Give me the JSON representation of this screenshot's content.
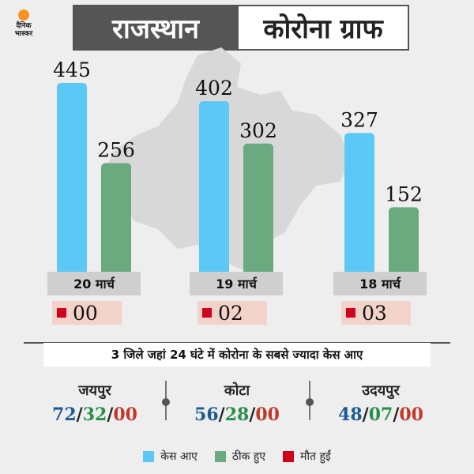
{
  "brand": {
    "line1": "दैनिक",
    "line2": "भास्कर"
  },
  "header": {
    "title_left": "राजस्थान",
    "title_right": "कोरोना ग्राफ"
  },
  "colors": {
    "cases": "#5bc8f5",
    "recovered": "#6aaa7e",
    "deaths": "#d0021b"
  },
  "chart_data": {
    "type": "bar",
    "categories": [
      "20 मार्च",
      "19 मार्च",
      "18 मार्च"
    ],
    "series": [
      {
        "name": "केस आए",
        "values": [
          445,
          402,
          327
        ]
      },
      {
        "name": "ठीक हुए",
        "values": [
          256,
          302,
          152
        ]
      }
    ],
    "deaths": [
      "00",
      "02",
      "03"
    ],
    "ylim": [
      0,
      445
    ]
  },
  "districts": {
    "heading": "3 जिले जहां 24 घंटे में कोरोना के सबसे ज्यादा केस आए",
    "items": [
      {
        "name": "जयपुर",
        "cases": "72",
        "recovered": "32",
        "deaths": "00"
      },
      {
        "name": "कोटा",
        "cases": "56",
        "recovered": "28",
        "deaths": "00"
      },
      {
        "name": "उदयपुर",
        "cases": "48",
        "recovered": "07",
        "deaths": "00"
      }
    ],
    "separator": "/"
  },
  "legend": [
    {
      "label": "केस आए",
      "color": "#5bc8f5"
    },
    {
      "label": "ठीक हुए",
      "color": "#6aaa7e"
    },
    {
      "label": "मौत हुईं",
      "color": "#d0021b"
    }
  ]
}
